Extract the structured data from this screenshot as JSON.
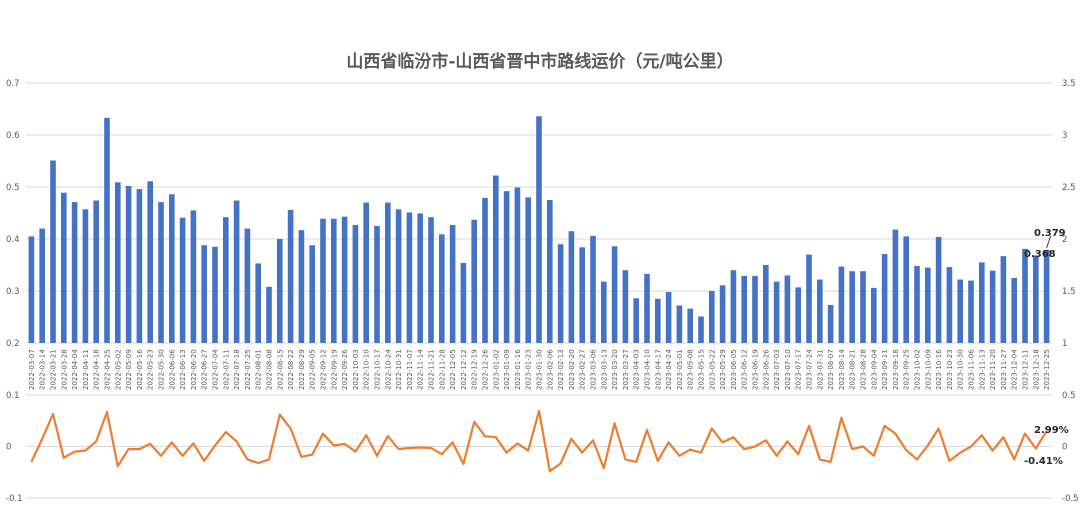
{
  "chart_data": {
    "type": "bar+line",
    "title": "山西省临汾市-山西省晋中市路线运价（元/吨公里）",
    "x": [
      "2022-03-07",
      "2022-03-14",
      "2022-03-21",
      "2022-03-28",
      "2022-04-04",
      "2022-04-11",
      "2022-04-18",
      "2022-04-25",
      "2022-05-02",
      "2022-05-09",
      "2022-05-16",
      "2022-05-23",
      "2022-05-30",
      "2022-06-06",
      "2022-06-13",
      "2022-06-20",
      "2022-06-27",
      "2022-07-04",
      "2022-07-11",
      "2022-07-18",
      "2022-07-25",
      "2022-08-01",
      "2022-08-08",
      "2022-08-15",
      "2022-08-22",
      "2022-08-29",
      "2022-09-05",
      "2022-09-12",
      "2022-09-19",
      "2022-09-26",
      "2022-10-03",
      "2022-10-10",
      "2022-10-17",
      "2022-10-24",
      "2022-10-31",
      "2022-11-07",
      "2022-11-14",
      "2022-11-21",
      "2022-11-28",
      "2022-12-05",
      "2022-12-12",
      "2022-12-19",
      "2022-12-26",
      "2023-01-02",
      "2023-01-09",
      "2023-01-16",
      "2023-01-23",
      "2023-01-30",
      "2023-02-06",
      "2023-02-13",
      "2023-02-20",
      "2023-02-27",
      "2023-03-06",
      "2023-03-13",
      "2023-03-20",
      "2023-03-27",
      "2023-04-03",
      "2023-04-10",
      "2023-04-17",
      "2023-04-24",
      "2023-05-01",
      "2023-05-08",
      "2023-05-15",
      "2023-05-22",
      "2023-05-29",
      "2023-06-05",
      "2023-06-12",
      "2023-06-19",
      "2023-06-26",
      "2023-07-03",
      "2023-07-10",
      "2023-07-17",
      "2023-07-24",
      "2023-07-31",
      "2023-08-07",
      "2023-08-14",
      "2023-08-21",
      "2023-08-28",
      "2023-09-04",
      "2023-09-11",
      "2023-09-18",
      "2023-09-25",
      "2023-10-02",
      "2023-10-09",
      "2023-10-16",
      "2023-10-23",
      "2023-10-30",
      "2023-11-06",
      "2023-11-13",
      "2023-11-20",
      "2023-11-27",
      "2023-12-04",
      "2023-12-11",
      "2023-12-18",
      "2023-12-25"
    ],
    "series": [
      {
        "type": "bar",
        "axis": "left",
        "color": "#4472C4",
        "values": [
          0.405,
          0.42,
          0.551,
          0.489,
          0.471,
          0.457,
          0.474,
          0.633,
          0.509,
          0.502,
          0.496,
          0.511,
          0.471,
          0.486,
          0.441,
          0.455,
          0.388,
          0.385,
          0.442,
          0.474,
          0.42,
          0.353,
          0.308,
          0.4,
          0.456,
          0.417,
          0.388,
          0.439,
          0.439,
          0.443,
          0.427,
          0.47,
          0.425,
          0.47,
          0.457,
          0.451,
          0.449,
          0.442,
          0.409,
          0.427,
          0.354,
          0.437,
          0.479,
          0.522,
          0.492,
          0.499,
          0.48,
          0.636,
          0.475,
          0.39,
          0.415,
          0.384,
          0.406,
          0.318,
          0.386,
          0.34,
          0.286,
          0.333,
          0.285,
          0.298,
          0.272,
          0.266,
          0.251,
          0.3,
          0.311,
          0.34,
          0.329,
          0.329,
          0.35,
          0.318,
          0.33,
          0.307,
          0.37,
          0.322,
          0.273,
          0.347,
          0.338,
          0.338,
          0.306,
          0.371,
          0.418,
          0.405,
          0.348,
          0.345,
          0.404,
          0.346,
          0.322,
          0.32,
          0.355,
          0.339,
          0.367,
          0.325,
          0.381,
          0.368,
          0.379
        ]
      },
      {
        "type": "line",
        "axis": "bottom",
        "color": "#ED7D31",
        "values": [
          -0.03,
          0.015,
          0.063,
          -0.022,
          -0.01,
          -0.008,
          0.01,
          0.067,
          -0.038,
          -0.005,
          -0.005,
          0.005,
          -0.018,
          0.008,
          -0.018,
          0.006,
          -0.028,
          0.002,
          0.028,
          0.01,
          -0.025,
          -0.032,
          -0.025,
          0.062,
          0.035,
          -0.02,
          -0.016,
          0.025,
          0.002,
          0.005,
          -0.01,
          0.022,
          -0.018,
          0.02,
          -0.005,
          -0.003,
          -0.002,
          -0.003,
          -0.015,
          0.008,
          -0.034,
          0.048,
          0.02,
          0.018,
          -0.012,
          0.006,
          -0.008,
          0.069,
          -0.048,
          -0.033,
          0.015,
          -0.012,
          0.012,
          -0.042,
          0.045,
          -0.025,
          -0.03,
          0.032,
          -0.028,
          0.008,
          -0.018,
          -0.006,
          -0.012,
          0.035,
          0.008,
          0.018,
          -0.005,
          0,
          0.012,
          -0.018,
          0.01,
          -0.015,
          0.04,
          -0.025,
          -0.03,
          0.056,
          -0.005,
          0,
          -0.018,
          0.04,
          0.025,
          -0.007,
          -0.025,
          0.002,
          0.035,
          -0.028,
          -0.012,
          0,
          0.022,
          -0.008,
          0.018,
          -0.025,
          0.025,
          -0.004,
          0.03
        ]
      }
    ],
    "left_axis": {
      "ylim": [
        0.2,
        0.7
      ],
      "ticks": [
        "0.7",
        "0.6",
        "0.5",
        "0.4",
        "0.3",
        "0.2"
      ]
    },
    "right_axis": {
      "ticks": [
        "3.5",
        "3",
        "2.5",
        "2",
        "1.5",
        "1"
      ]
    },
    "lower_left_axis": {
      "ylim": [
        -0.1,
        0.1
      ],
      "ticks": [
        "0.1",
        "0",
        "-0.1"
      ]
    },
    "lower_right_axis": {
      "ticks": [
        "0.5",
        "0",
        "-0.5"
      ]
    },
    "annotations": [
      "0.379",
      "0.368",
      "2.99%",
      "-0.41%"
    ],
    "grid": true
  }
}
